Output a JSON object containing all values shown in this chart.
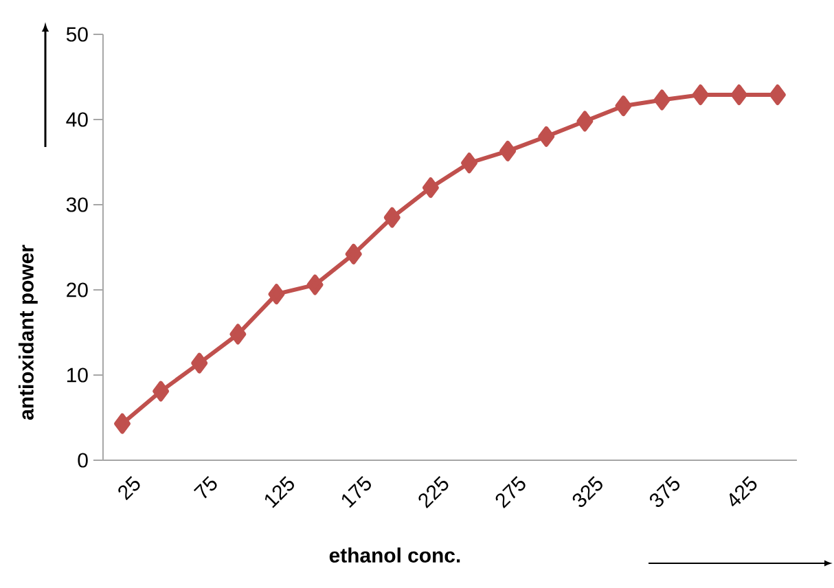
{
  "chart_data": {
    "type": "line",
    "xlabel": "ethanol conc.",
    "ylabel": "antioxidant power",
    "categories": [
      "25",
      null,
      "75",
      null,
      "125",
      null,
      "175",
      null,
      "225",
      null,
      "275",
      null,
      "325",
      null,
      "375",
      null,
      "425",
      null
    ],
    "series": [
      {
        "color": "#c0504d",
        "values": [
          4.3,
          8.1,
          11.4,
          14.8,
          19.5,
          20.6,
          24.2,
          28.5,
          32.0,
          34.9,
          36.3,
          38.0,
          39.8,
          41.6,
          42.3,
          42.9,
          42.9,
          42.9
        ]
      }
    ],
    "ylim": [
      0,
      50
    ],
    "yticks": [
      0,
      10,
      20,
      30,
      40,
      50
    ],
    "marker": "diamond",
    "line_style": "solid",
    "grid": false,
    "legend": false
  }
}
